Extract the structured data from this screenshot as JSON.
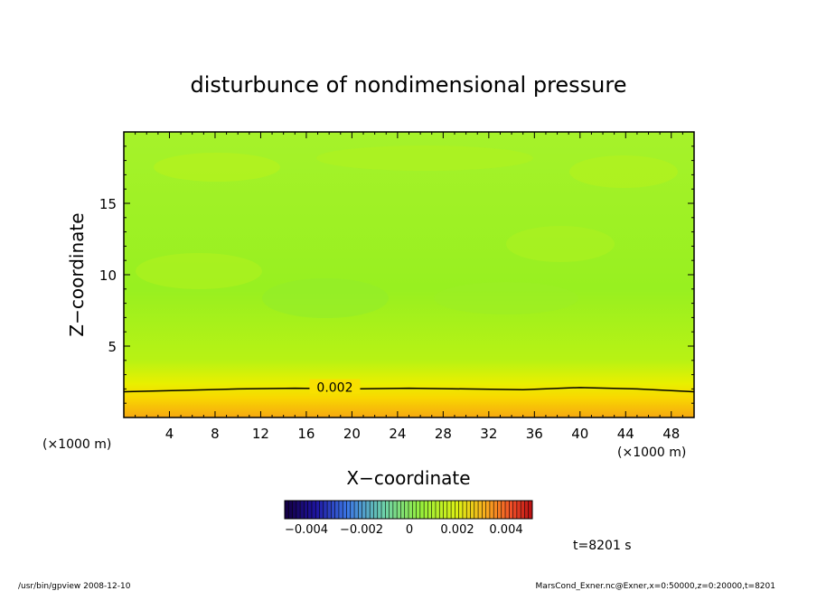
{
  "chart_data": {
    "type": "heatmap",
    "title": "disturbunce of nondimensional pressure",
    "xlabel": "X−coordinate",
    "ylabel": "Z−coordinate",
    "x_unit_left": "(×1000 m)",
    "x_unit_right": "(×1000 m)",
    "xlim": [
      0,
      50
    ],
    "ylim": [
      0,
      20
    ],
    "x_ticks": [
      4,
      8,
      12,
      16,
      20,
      24,
      28,
      32,
      36,
      40,
      44,
      48
    ],
    "x_tick_labels": [
      "4",
      "8",
      "12",
      "16",
      "20",
      "24",
      "28",
      "32",
      "36",
      "40",
      "44",
      "48"
    ],
    "y_ticks": [
      5,
      10,
      15
    ],
    "y_tick_labels": [
      "5",
      "10",
      "15"
    ],
    "contour": {
      "level_label": "0.002",
      "points": [
        [
          0,
          1.8
        ],
        [
          5,
          1.9
        ],
        [
          10,
          2.0
        ],
        [
          15,
          2.05
        ],
        [
          20,
          2.0
        ],
        [
          25,
          2.05
        ],
        [
          30,
          2.0
        ],
        [
          35,
          1.95
        ],
        [
          40,
          2.1
        ],
        [
          45,
          2.0
        ],
        [
          50,
          1.8
        ]
      ]
    },
    "colorbar": {
      "range": [
        -0.005,
        0.005
      ],
      "tick_labels": [
        "−0.004",
        "−0.002",
        "0",
        "0.002",
        "0.004"
      ]
    },
    "time_label": "t=8201 s"
  },
  "footer": {
    "left": "/usr/bin/gpview   2008-12-10",
    "right": "MarsCond_Exner.nc@Exner,x=0:50000,z=0:20000,t=8201"
  }
}
